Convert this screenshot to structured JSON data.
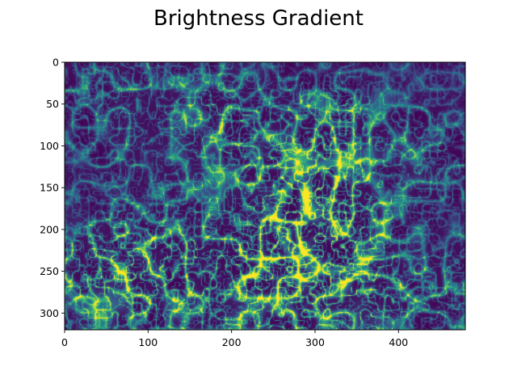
{
  "figure": {
    "title": "Brightness Gradient"
  },
  "chart_data": {
    "type": "heatmap",
    "title": "Brightness Gradient",
    "xlabel": "",
    "ylabel": "",
    "colormap": "viridis",
    "image_size": {
      "columns": 480,
      "rows": 320
    },
    "xlim": [
      0,
      480
    ],
    "ylim": [
      320,
      0
    ],
    "y_axis_inverted": true,
    "x_ticks": [
      0,
      100,
      200,
      300,
      400
    ],
    "y_ticks": [
      0,
      50,
      100,
      150,
      200,
      250,
      300
    ],
    "x_tick_labels": [
      "0",
      "100",
      "200",
      "300",
      "400"
    ],
    "y_tick_labels": [
      "0",
      "50",
      "100",
      "150",
      "200",
      "250",
      "300"
    ],
    "value_range": [
      0,
      1
    ],
    "grid": false,
    "legend": "none",
    "colors": {
      "low": "#440154",
      "mid_low": "#3b528b",
      "mid": "#21918c",
      "mid_high": "#5ec962",
      "high": "#fde725"
    }
  }
}
